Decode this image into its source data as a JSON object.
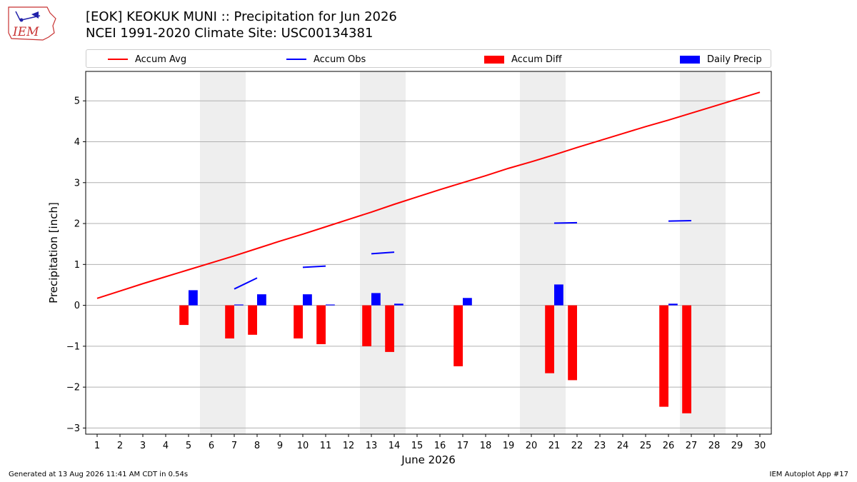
{
  "header": {
    "title_line1": "[EOK] KEOKUK MUNI :: Precipitation for Jun 2026",
    "title_line2": "NCEI 1991-2020 Climate Site: USC00134381",
    "logo_text": "IEM"
  },
  "legend": {
    "items": [
      {
        "label": "Accum Avg",
        "kind": "line",
        "color": "#ff0000"
      },
      {
        "label": "Accum Obs",
        "kind": "line",
        "color": "#0000ff"
      },
      {
        "label": "Accum Diff",
        "kind": "patch",
        "color": "#ff0000"
      },
      {
        "label": "Daily Precip",
        "kind": "patch",
        "color": "#0000ff"
      }
    ]
  },
  "footer": {
    "left": "Generated at 13 Aug 2026 11:41 AM CDT in 0.54s",
    "right": "IEM Autoplot App #17"
  },
  "chart_data": {
    "type": "bar",
    "xlabel": "June 2026",
    "ylabel": "Precipitation [inch]",
    "xlim": [
      0.5,
      30.5
    ],
    "ylim": [
      -3.15,
      5.72
    ],
    "x_ticks": [
      1,
      2,
      3,
      4,
      5,
      6,
      7,
      8,
      9,
      10,
      11,
      12,
      13,
      14,
      15,
      16,
      17,
      18,
      19,
      20,
      21,
      22,
      23,
      24,
      25,
      26,
      27,
      28,
      29,
      30
    ],
    "y_ticks": [
      -3,
      -2,
      -1,
      0,
      1,
      2,
      3,
      4,
      5
    ],
    "grid": "horizontal",
    "weekend_shading": [
      [
        6,
        7
      ],
      [
        13,
        14
      ],
      [
        20,
        21
      ],
      [
        27,
        28
      ]
    ],
    "accum_avg": {
      "name": "Accum Avg",
      "color": "#ff0000",
      "x": [
        1,
        2,
        3,
        4,
        5,
        6,
        7,
        8,
        9,
        10,
        11,
        12,
        13,
        14,
        15,
        16,
        17,
        18,
        19,
        20,
        21,
        22,
        23,
        24,
        25,
        26,
        27,
        28,
        29,
        30
      ],
      "values": [
        0.17,
        0.35,
        0.53,
        0.7,
        0.87,
        1.04,
        1.21,
        1.39,
        1.57,
        1.74,
        1.92,
        2.1,
        2.28,
        2.47,
        2.65,
        2.83,
        3.0,
        3.17,
        3.35,
        3.51,
        3.68,
        3.86,
        4.03,
        4.2,
        4.37,
        4.53,
        4.7,
        4.87,
        5.04,
        5.21
      ]
    },
    "accum_obs": {
      "name": "Accum Obs",
      "color": "#0000ff",
      "segments": [
        {
          "x": [
            7,
            8
          ],
          "values": [
            0.4,
            0.67
          ]
        },
        {
          "x": [
            10,
            11
          ],
          "values": [
            0.93,
            0.96
          ]
        },
        {
          "x": [
            13,
            14
          ],
          "values": [
            1.26,
            1.3
          ]
        },
        {
          "x": [
            21,
            22
          ],
          "values": [
            2.01,
            2.02
          ]
        },
        {
          "x": [
            26,
            27
          ],
          "values": [
            2.06,
            2.07
          ]
        }
      ]
    },
    "accum_diff": {
      "name": "Accum Diff",
      "color": "#ff0000",
      "x": [
        5,
        7,
        8,
        10,
        11,
        13,
        14,
        17,
        21,
        22,
        26,
        27
      ],
      "values": [
        -0.48,
        -0.81,
        -0.72,
        -0.81,
        -0.95,
        -1.0,
        -1.14,
        -1.49,
        -1.66,
        -1.83,
        -2.48,
        -2.64
      ]
    },
    "daily_precip": {
      "name": "Daily Precip",
      "color": "#0000ff",
      "x": [
        5,
        7,
        8,
        10,
        11,
        13,
        14,
        17,
        21,
        26
      ],
      "values": [
        0.37,
        0.02,
        0.27,
        0.27,
        0.02,
        0.3,
        0.04,
        0.18,
        0.51,
        0.04
      ]
    }
  }
}
